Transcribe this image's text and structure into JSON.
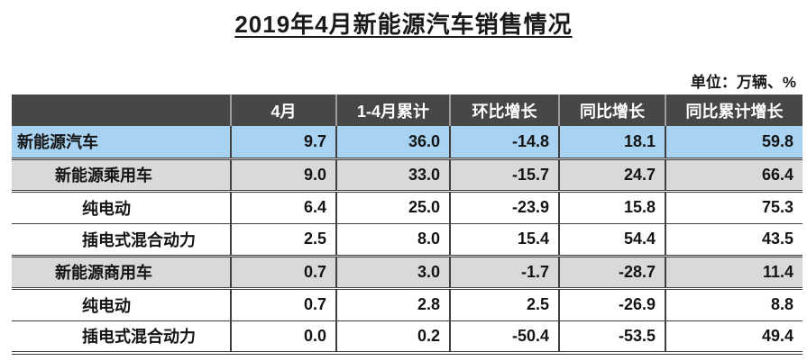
{
  "title": "2019年4月新能源汽车销售情况",
  "unit_note": "单位：万辆、%",
  "colors": {
    "header_bg": "#474747",
    "header_text": "#ffffff",
    "highlight_row_bg": "#a8d2f2",
    "section_row_bg": "#d9d9d9",
    "grid_line": "#3f3f3f",
    "highlight_bottom_rule": "#46566a"
  },
  "chart_data": {
    "type": "table",
    "title": "2019年4月新能源汽车销售情况",
    "unit": "单位：万辆、%",
    "columns": [
      "",
      "4月",
      "1-4月累计",
      "环比增长",
      "同比增长",
      "同比累计增长"
    ],
    "rows": [
      {
        "label": "新能源汽车",
        "values": [
          "9.7",
          "36.0",
          "-14.8",
          "18.1",
          "59.8"
        ],
        "style": "highlight",
        "indent": 0
      },
      {
        "label": "新能源乘用车",
        "values": [
          "9.0",
          "33.0",
          "-15.7",
          "24.7",
          "66.4"
        ],
        "style": "section",
        "indent": 1
      },
      {
        "label": "纯电动",
        "values": [
          "6.4",
          "25.0",
          "-23.9",
          "15.8",
          "75.3"
        ],
        "style": "plain",
        "indent": 2
      },
      {
        "label": "插电式混合动力",
        "values": [
          "2.5",
          "8.0",
          "15.4",
          "54.4",
          "43.5"
        ],
        "style": "plain",
        "indent": 2
      },
      {
        "label": "新能源商用车",
        "values": [
          "0.7",
          "3.0",
          "-1.7",
          "-28.7",
          "11.4"
        ],
        "style": "section",
        "indent": 1
      },
      {
        "label": "纯电动",
        "values": [
          "0.7",
          "2.8",
          "2.5",
          "-26.9",
          "8.8"
        ],
        "style": "plain",
        "indent": 2
      },
      {
        "label": "插电式混合动力",
        "values": [
          "0.0",
          "0.2",
          "-50.4",
          "-53.5",
          "49.4"
        ],
        "style": "plain",
        "indent": 2
      }
    ]
  }
}
